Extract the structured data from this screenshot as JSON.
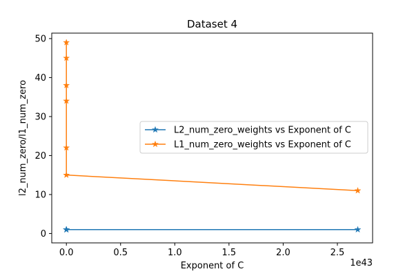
{
  "chart_data": {
    "type": "line",
    "title": "Dataset 4",
    "xlabel": "Exponent of C",
    "ylabel": "l2_num_zero/l1_num_zero",
    "x_offset_label": "1e43",
    "xlim": [
      -0.135,
      2.825
    ],
    "ylim": [
      -2.4,
      51.4
    ],
    "xticks": [
      0.0,
      0.5,
      1.0,
      1.5,
      2.0,
      2.5
    ],
    "xtick_labels": [
      "0.0",
      "0.5",
      "1.0",
      "1.5",
      "2.0",
      "2.5"
    ],
    "yticks": [
      0,
      10,
      20,
      30,
      40,
      50
    ],
    "ytick_labels": [
      "0",
      "10",
      "20",
      "30",
      "40",
      "50"
    ],
    "grid": false,
    "legend_position": "center-right",
    "series": [
      {
        "name": "L2_num_zero_weights vs Exponent of C",
        "color": "#1f77b4",
        "marker": "star",
        "x": [
          0,
          0,
          0,
          0,
          0,
          0,
          2.688
        ],
        "y": [
          1,
          1,
          1,
          1,
          1,
          1,
          1
        ]
      },
      {
        "name": "L1_num_zero_weights vs Exponent of C",
        "color": "#ff7f0e",
        "marker": "star",
        "x": [
          0,
          0,
          0,
          0,
          0,
          0,
          2.688
        ],
        "y": [
          49,
          45,
          38,
          34,
          22,
          15,
          11
        ]
      }
    ]
  }
}
